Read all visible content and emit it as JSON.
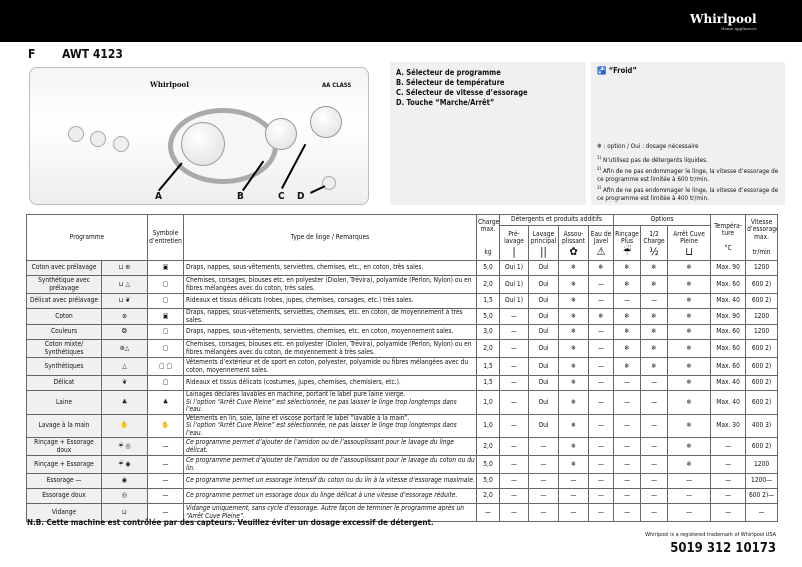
{
  "header": {
    "brand": "Whirlpool",
    "brand_tagline": "Home Appliances",
    "language": "F",
    "model": "AWT 4123"
  },
  "panel": {
    "brand": "Whirlpool",
    "energy_class": "AA CLASS",
    "callouts": [
      "A",
      "B",
      "C",
      "D"
    ]
  },
  "description": [
    "A. Sélecteur de programme",
    "B. Sélecteur de température",
    "C. Sélecteur de vitesse d’essorage",
    "D. Touche “Marche/Arrêt”"
  ],
  "notes": {
    "froid": "“Froid”",
    "legend": "❄ : option / Oui : dosage nécessaire",
    "footnotes": [
      {
        "mark": "1)",
        "text": "N’utilisez pas de détergents liquides."
      },
      {
        "mark": "2)",
        "text": "Afin de ne pas endommager le linge, la vitesse d’essorage de ce programme est limitée à 600 tr/min."
      },
      {
        "mark": "3)",
        "text": "Afin de ne pas endommager le linge, la vitesse d’essorage de ce programme est limitée à 400 tr/min."
      }
    ]
  },
  "table": {
    "headers": {
      "programme": "Programme",
      "symbole": "Symbole d’entretien",
      "type": "Type de linge / Remarques",
      "charge": "Charge max.",
      "charge_unit": "kg",
      "detergents": "Détergents et produits additifs",
      "options": "Options",
      "temperature": "Tempéra-ture",
      "temp_unit": "°C",
      "vitesse": "Vitesse d’essorage max.",
      "vitesse_unit": "tr/min",
      "prelavage": "Pré-lavage",
      "lavage": "Lavage principal",
      "assouplissant": "Assou-plissant",
      "javel": "Eau de Javel",
      "rincage": "Rinçage Plus",
      "demi": "1/2 Charge",
      "arret": "Arrêt Cuve Pleine"
    },
    "header_icons": {
      "prelavage": "|",
      "lavage": "||",
      "assouplissant": "✿",
      "javel": "⚠",
      "rincage": "☔",
      "demi": "½",
      "arret": "⊔"
    },
    "rows": [
      {
        "programme": "Coton avec prélavage",
        "icon": "⊔ ⊛",
        "symbole": "▣",
        "type": "Draps, nappes, sous-vêtements, serviettes, chemises, etc., en coton, très sales.",
        "charge": "5,0",
        "pre": "Oui 1)",
        "lav": "Oui",
        "ass": "❄",
        "jav": "❄",
        "rin": "❄",
        "demi": "❄",
        "arr": "❄",
        "temp": "Max. 90",
        "vit": "1200"
      },
      {
        "programme": "Synthétique avec prélavage",
        "icon": "⊔ △",
        "symbole": "▢",
        "type": "Chemises, corsages, blouses etc. en polyester (Diolen, Trévira), polyamide (Perlon, Nylon) ou en fibres mélangées avec du coton, très sales.",
        "charge": "2,0",
        "pre": "Oui 1)",
        "lav": "Oui",
        "ass": "❄",
        "jav": "—",
        "rin": "❄",
        "demi": "❄",
        "arr": "❄",
        "temp": "Max. 60",
        "vit": "600 2)"
      },
      {
        "programme": "Délicat avec prélavage",
        "icon": "⊔ ❦",
        "symbole": "▢",
        "type": "Rideaux et tissus délicats (robes, jupes, chemises, corsages, etc.) très sales.",
        "charge": "1,5",
        "pre": "Oui 1)",
        "lav": "Oui",
        "ass": "❄",
        "jav": "—",
        "rin": "—",
        "demi": "—",
        "arr": "❄",
        "temp": "Max. 40",
        "vit": "600 2)"
      },
      {
        "programme": "Coton",
        "icon": "⊛",
        "symbole": "▣",
        "type": "Draps, nappes, sous-vêtements, serviettes, chemises, etc. en coton, de moyennement à très sales.",
        "charge": "5,0",
        "pre": "—",
        "lav": "Oui",
        "ass": "❄",
        "jav": "❄",
        "rin": "❄",
        "demi": "❄",
        "arr": "❄",
        "temp": "Max. 90",
        "vit": "1200"
      },
      {
        "programme": "Couleurs",
        "icon": "❂",
        "symbole": "▢",
        "type": "Draps, nappes, sous-vêtements, serviettes, chemises, etc. en coton, moyennement sales.",
        "charge": "3,0",
        "pre": "—",
        "lav": "Oui",
        "ass": "❄",
        "jav": "—",
        "rin": "❄",
        "demi": "❄",
        "arr": "❄",
        "temp": "Max. 60",
        "vit": "1200"
      },
      {
        "programme": "Coton mixte/ Synthétiques",
        "icon": "⊛△",
        "symbole": "▢",
        "type": "Chemises, corsages, blouses etc. en polyester (Diolen, Trévira), polyamide (Perlon, Nylon) ou en fibres mélangées avec du coton, de moyennement à très sales.",
        "charge": "2,0",
        "pre": "—",
        "lav": "Oui",
        "ass": "❄",
        "jav": "—",
        "rin": "❄",
        "demi": "❄",
        "arr": "❄",
        "temp": "Max. 60",
        "vit": "600 2)"
      },
      {
        "programme": "Synthétiques",
        "icon": "△",
        "symbole": "▢ ▢",
        "type": "Vêtements d’extérieur et de sport en coton, polyester, polyamide ou fibres mélangées avec du coton, moyennement sales.",
        "charge": "1,5",
        "pre": "—",
        "lav": "Oui",
        "ass": "❄",
        "jav": "—",
        "rin": "❄",
        "demi": "❄",
        "arr": "❄",
        "temp": "Max. 60",
        "vit": "600 2)"
      },
      {
        "programme": "Délicat",
        "icon": "❦",
        "symbole": "▢",
        "type": "Rideaux et tissus délicats (costumes, jupes, chemises, chemisiers, etc.).",
        "charge": "1,5",
        "pre": "—",
        "lav": "Oui",
        "ass": "❄",
        "jav": "—",
        "rin": "—",
        "demi": "—",
        "arr": "❄",
        "temp": "Max. 40",
        "vit": "600 2)"
      },
      {
        "programme": "Laine",
        "icon": "♣",
        "symbole": "♣",
        "type": "Lainages déclarés lavables en machine, portant le label pure laine vierge.",
        "type_note": "Si l’option “Arrêt Cuve Pleine” est sélectionnée, ne pas laisser le linge trop longtemps dans l’eau.",
        "charge": "1,0",
        "pre": "—",
        "lav": "Oui",
        "ass": "❄",
        "jav": "—",
        "rin": "—",
        "demi": "—",
        "arr": "❄",
        "temp": "Max. 40",
        "vit": "600 2)"
      },
      {
        "programme": "Lavage à la main",
        "icon": "✋",
        "symbole": "✋",
        "type": "Vêtements en lin, soie, laine et viscose portant le label “lavable à la main”.",
        "type_note": "Si l’option “Arrêt Cuve Pleine” est sélectionnée, ne pas laisser le linge trop longtemps dans l’eau.",
        "charge": "1,0",
        "pre": "—",
        "lav": "Oui",
        "ass": "❄",
        "jav": "—",
        "rin": "—",
        "demi": "—",
        "arr": "❄",
        "temp": "Max. 30",
        "vit": "400 3)"
      },
      {
        "programme": "Rinçage + Essorage doux",
        "icon": "☔ ◎",
        "symbole": "—",
        "type_note": "Ce programme permet d’ajouter de l’amidon ou de l’assouplissant pour le lavage du linge délicat.",
        "charge": "2,0",
        "pre": "—",
        "lav": "—",
        "ass": "❄",
        "jav": "—",
        "rin": "—",
        "demi": "—",
        "arr": "❄",
        "temp": "—",
        "vit": "600 2)"
      },
      {
        "programme": "Rinçage + Essorage",
        "icon": "☔ ◉",
        "symbole": "—",
        "type_note": "Ce programme permet d’ajouter de l’amidon ou de l’assouplissant pour le lavage du coton ou du lin.",
        "charge": "5,0",
        "pre": "—",
        "lav": "—",
        "ass": "❄",
        "jav": "—",
        "rin": "—",
        "demi": "—",
        "arr": "❄",
        "temp": "—",
        "vit": "1200"
      },
      {
        "programme": "Essorage —",
        "icon": "◉",
        "symbole": "—",
        "type_note": "Ce programme permet un essorage intensif du coton ou du lin à la vitesse d’essorage maximale.",
        "charge": "5,0",
        "pre": "—",
        "lav": "—",
        "ass": "—",
        "jav": "—",
        "rin": "—",
        "demi": "—",
        "arr": "—",
        "temp": "—",
        "vit": "1200—"
      },
      {
        "programme": "Essorage doux",
        "icon": "◎",
        "symbole": "—",
        "type_note": "Ce programme permet un essorage doux du linge délicat à une vitesse d’essorage réduite.",
        "charge": "2,0",
        "pre": "—",
        "lav": "—",
        "ass": "—",
        "jav": "—",
        "rin": "—",
        "demi": "—",
        "arr": "—",
        "temp": "—",
        "vit": "600 2)—"
      },
      {
        "programme": "Vidange",
        "icon": "⊔",
        "symbole": "—",
        "type_note": "Vidange uniquement, sans cycle d’essorage. Autre façon de terminer le programme après un “Arrêt Cuve Pleine”.",
        "charge": "—",
        "pre": "—",
        "lav": "—",
        "ass": "—",
        "jav": "—",
        "rin": "—",
        "demi": "—",
        "arr": "—",
        "temp": "—",
        "vit": "—"
      }
    ]
  },
  "footer": {
    "nb": "N.B. Cette machine est contrôlée par des capteurs. Veuillez éviter un dosage excessif de détergent.",
    "trademark": "Whirlpool is a registered trademark of Whirlpool USA",
    "code": "5019 312 10173"
  }
}
